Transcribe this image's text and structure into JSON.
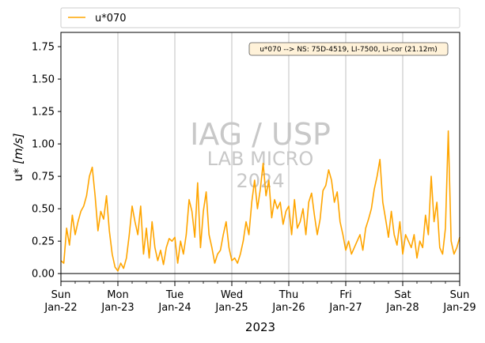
{
  "chart_data": {
    "type": "line",
    "legend": {
      "entries": [
        {
          "label": "u*070",
          "color": "#ffa500"
        }
      ],
      "placement": "top"
    },
    "annotation": "u*070 --> NS: 75D-4519, LI-7500, Li-cor (21.12m)",
    "watermark": [
      "IAG / USP",
      "LAB MICRO",
      "2024"
    ],
    "xlabel": "2023",
    "ylabel_prefix": "u* ",
    "ylabel_unit": "[m/s]",
    "ylim": [
      -0.06,
      1.86
    ],
    "yticks": [
      0.0,
      0.25,
      0.5,
      0.75,
      1.0,
      1.25,
      1.5,
      1.75
    ],
    "ytick_labels": [
      "0.00",
      "0.25",
      "0.50",
      "0.75",
      "1.00",
      "1.25",
      "1.50",
      "1.75"
    ],
    "xlim": [
      0,
      7
    ],
    "xticks": [
      {
        "day": 0,
        "line1": "Sun",
        "line2": "Jan-22"
      },
      {
        "day": 1,
        "line1": "Mon",
        "line2": "Jan-23"
      },
      {
        "day": 2,
        "line1": "Tue",
        "line2": "Jan-24"
      },
      {
        "day": 3,
        "line1": "Wed",
        "line2": "Jan-25"
      },
      {
        "day": 4,
        "line1": "Thu",
        "line2": "Jan-26"
      },
      {
        "day": 5,
        "line1": "Fri",
        "line2": "Jan-27"
      },
      {
        "day": 6,
        "line1": "Sat",
        "line2": "Jan-28"
      },
      {
        "day": 7,
        "line1": "Sun",
        "line2": "Jan-29"
      }
    ],
    "grid": "vertical",
    "zero_line": true,
    "series": [
      {
        "name": "u*070",
        "color": "#ffa500",
        "x": [
          0.0,
          0.05,
          0.1,
          0.15,
          0.2,
          0.25,
          0.3,
          0.35,
          0.4,
          0.45,
          0.5,
          0.55,
          0.6,
          0.65,
          0.7,
          0.75,
          0.8,
          0.85,
          0.9,
          0.95,
          1.0,
          1.05,
          1.1,
          1.15,
          1.2,
          1.25,
          1.3,
          1.35,
          1.4,
          1.45,
          1.5,
          1.55,
          1.6,
          1.65,
          1.7,
          1.75,
          1.8,
          1.85,
          1.9,
          1.95,
          2.0,
          2.05,
          2.1,
          2.15,
          2.2,
          2.25,
          2.3,
          2.35,
          2.4,
          2.45,
          2.5,
          2.55,
          2.6,
          2.65,
          2.7,
          2.75,
          2.8,
          2.85,
          2.9,
          2.95,
          3.0,
          3.05,
          3.1,
          3.15,
          3.2,
          3.25,
          3.3,
          3.35,
          3.4,
          3.45,
          3.5,
          3.55,
          3.6,
          3.65,
          3.7,
          3.75,
          3.8,
          3.85,
          3.9,
          3.95,
          4.0,
          4.05,
          4.1,
          4.15,
          4.2,
          4.25,
          4.3,
          4.35,
          4.4,
          4.45,
          4.5,
          4.55,
          4.6,
          4.65,
          4.7,
          4.75,
          4.8,
          4.85,
          4.9,
          4.95,
          5.0,
          5.05,
          5.1,
          5.15,
          5.2,
          5.25,
          5.3,
          5.35,
          5.4,
          5.45,
          5.5,
          5.55,
          5.6,
          5.65,
          5.7,
          5.75,
          5.8,
          5.85,
          5.9,
          5.95,
          6.0,
          6.05,
          6.1,
          6.15,
          6.2,
          6.25,
          6.3,
          6.35,
          6.4,
          6.45,
          6.5,
          6.55,
          6.6,
          6.65,
          6.7,
          6.75,
          6.8,
          6.85,
          6.9,
          6.95,
          7.0
        ],
        "y": [
          0.1,
          0.08,
          0.35,
          0.22,
          0.45,
          0.3,
          0.4,
          0.48,
          0.52,
          0.6,
          0.75,
          0.82,
          0.6,
          0.33,
          0.48,
          0.42,
          0.6,
          0.33,
          0.15,
          0.05,
          0.02,
          0.08,
          0.04,
          0.12,
          0.3,
          0.52,
          0.4,
          0.3,
          0.52,
          0.15,
          0.35,
          0.12,
          0.4,
          0.2,
          0.1,
          0.18,
          0.07,
          0.2,
          0.27,
          0.25,
          0.28,
          0.08,
          0.25,
          0.15,
          0.3,
          0.57,
          0.48,
          0.28,
          0.7,
          0.2,
          0.48,
          0.63,
          0.3,
          0.2,
          0.08,
          0.15,
          0.18,
          0.3,
          0.4,
          0.2,
          0.1,
          0.12,
          0.08,
          0.15,
          0.25,
          0.4,
          0.3,
          0.55,
          0.72,
          0.5,
          0.65,
          0.85,
          0.6,
          0.72,
          0.43,
          0.57,
          0.5,
          0.55,
          0.38,
          0.48,
          0.52,
          0.3,
          0.57,
          0.35,
          0.4,
          0.5,
          0.3,
          0.55,
          0.62,
          0.45,
          0.3,
          0.42,
          0.64,
          0.68,
          0.8,
          0.72,
          0.55,
          0.63,
          0.4,
          0.3,
          0.18,
          0.25,
          0.15,
          0.2,
          0.25,
          0.3,
          0.18,
          0.35,
          0.42,
          0.5,
          0.65,
          0.75,
          0.88,
          0.55,
          0.42,
          0.28,
          0.48,
          0.3,
          0.22,
          0.4,
          0.15,
          0.3,
          0.25,
          0.2,
          0.3,
          0.12,
          0.25,
          0.2,
          0.45,
          0.3,
          0.75,
          0.4,
          0.55,
          0.2,
          0.15,
          0.35,
          1.1,
          0.25,
          0.15,
          0.2,
          0.28
        ]
      }
    ]
  }
}
